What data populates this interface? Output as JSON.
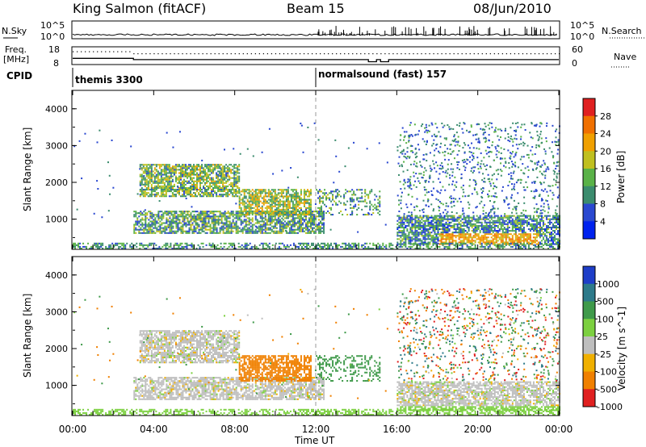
{
  "header": {
    "station": "King Salmon (fitACF)",
    "beam": "Beam 15",
    "date": "08/Jun/2010"
  },
  "summary": {
    "nsky_label": "N.Sky",
    "nsearch_label": "N.Search",
    "left_ticks": [
      "10^5",
      "10^0"
    ],
    "right_ticks": [
      "10^5",
      "10^0"
    ],
    "freq_label": "Freq.",
    "freq_unit": "[MHz]",
    "freq_ticks": [
      "18",
      "8"
    ],
    "nave_label": "Nave",
    "nave_ticks": [
      "60",
      "0"
    ],
    "cpid_label": "CPID",
    "cpid_modes": [
      {
        "name": "themis 3300",
        "start_hour": 0
      },
      {
        "name": "normalsound (fast) 157",
        "start_hour": 12
      }
    ]
  },
  "panels": {
    "power": {
      "ylabel": "Slant Range [km]",
      "yticks": [
        "1000",
        "2000",
        "3000",
        "4000"
      ],
      "colorbar_label": "Power [dB]",
      "colorbar_ticks": [
        "4",
        "8",
        "12",
        "16",
        "20",
        "24",
        "28"
      ],
      "colors": [
        "#0022ee",
        "#2a48d0",
        "#3b8c6e",
        "#5ab248",
        "#c0c020",
        "#f0a000",
        "#f07000",
        "#e02020"
      ]
    },
    "velocity": {
      "ylabel": "Slant Range [km]",
      "yticks": [
        "1000",
        "2000",
        "3000",
        "4000"
      ],
      "colorbar_label": "Velocity [m s^-1]",
      "colorbar_ticks": [
        "1000",
        "500",
        "100",
        "25",
        "-25",
        "-100",
        "-500",
        "-1000"
      ],
      "colors": [
        "#1e3ec8",
        "#2d7a8a",
        "#3f9a4a",
        "#7cd040",
        "#bebebe",
        "#f0b000",
        "#f08000",
        "#e02020"
      ]
    }
  },
  "xaxis": {
    "label": "Time UT",
    "ticks": [
      "00:00",
      "04:00",
      "08:00",
      "12:00",
      "16:00",
      "20:00",
      "00:00"
    ]
  },
  "chart_data": {
    "type": "heatmap",
    "title": "King Salmon (fitACF) Beam 15 08/Jun/2010",
    "xlabel": "Time UT",
    "ylabel": "Slant Range [km]",
    "xlim_hours": [
      0,
      24
    ],
    "ylim_km": [
      180,
      4500
    ],
    "colorbar_power_db": [
      4,
      8,
      12,
      16,
      20,
      24,
      28
    ],
    "colorbar_velocity_ms": [
      1000,
      500,
      100,
      25,
      -25,
      -100,
      -500,
      -1000
    ],
    "cpid": [
      {
        "mode": "themis 3300",
        "from_hour": 0,
        "to_hour": 12
      },
      {
        "mode": "normalsound (fast) 157",
        "from_hour": 12,
        "to_hour": 24
      }
    ],
    "frequency_mhz_step": {
      "from_hour": 0,
      "to_hour": 3,
      "value": 11.5,
      "after": 10.8
    },
    "echo_regions": [
      {
        "t0": 3.3,
        "t1": 8.2,
        "r0": 1600,
        "r1": 2500,
        "power_db": 14,
        "velocity": 0
      },
      {
        "t0": 3.0,
        "t1": 12.4,
        "r0": 600,
        "r1": 1200,
        "power_db": 12,
        "velocity": 0
      },
      {
        "t0": 8.2,
        "t1": 11.8,
        "r0": 1100,
        "r1": 1800,
        "power_db": 16,
        "velocity": -150
      },
      {
        "t0": 12.0,
        "t1": 15.2,
        "r0": 1100,
        "r1": 1800,
        "power_db": 12,
        "velocity": 150
      },
      {
        "t0": 16.0,
        "t1": 24.0,
        "r0": 300,
        "r1": 1100,
        "power_db": 10,
        "velocity": 0
      }
    ]
  }
}
